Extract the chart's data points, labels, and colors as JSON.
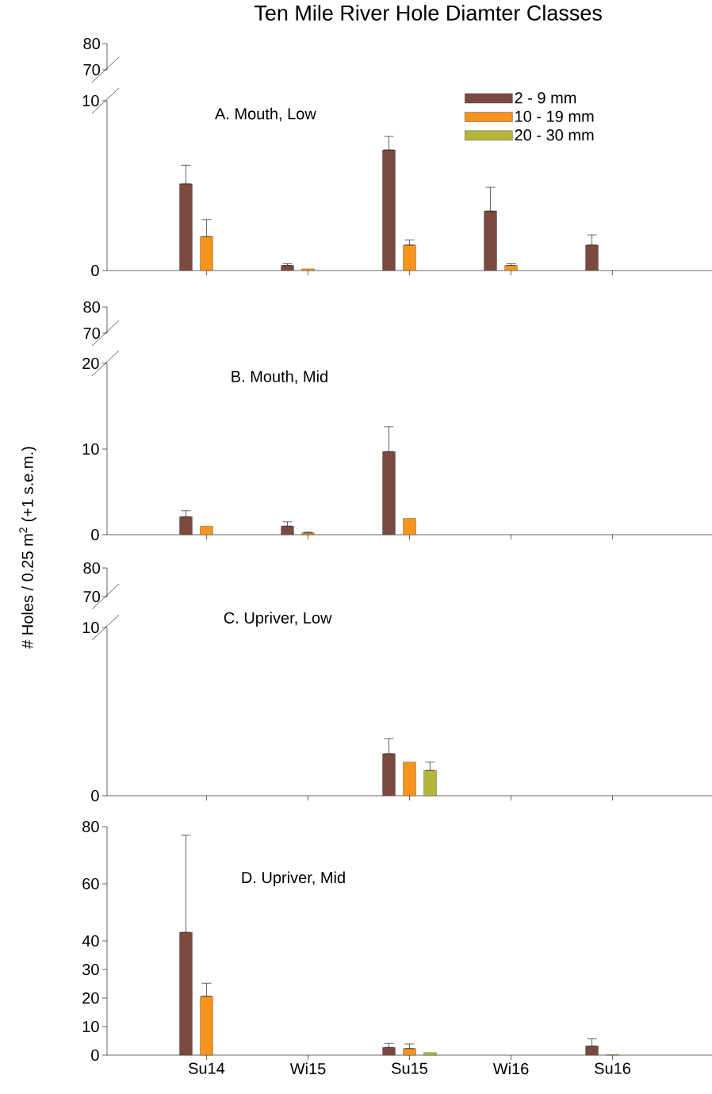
{
  "chart_data": [
    {
      "type": "other",
      "title": "Ten Mile River Hole Diamter Classes",
      "annotations": [
        "80",
        "70"
      ]
    },
    {
      "type": "bar",
      "annotations": [
        "A. Mouth, Low"
      ],
      "categories": [
        null,
        null,
        null,
        null,
        null
      ],
      "ylim": [
        0,
        10
      ],
      "yticks": [
        0,
        10
      ],
      "tick_labels": "y",
      "legend": "top right",
      "series": [
        {
          "name": "2 - 9 mm",
          "color": "#7b4a3f",
          "values": [
            5.1,
            0.3,
            7.1,
            3.5,
            1.5
          ],
          "errors": [
            [
              5.1,
              6.2
            ],
            [
              0.3,
              0.4
            ],
            [
              7.1,
              7.9
            ],
            [
              3.5,
              4.9
            ],
            [
              1.5,
              2.1
            ]
          ]
        },
        {
          "name": "10 - 19 mm",
          "color": "#f7941d",
          "values": [
            2.0,
            0.1,
            1.5,
            0.3,
            null
          ],
          "errors": [
            [
              2.0,
              3.0
            ],
            null,
            [
              1.5,
              1.8
            ],
            [
              0.3,
              0.4
            ],
            null
          ]
        },
        {
          "name": "20 - 30 mm",
          "color": "#b5b53a",
          "values": [
            null,
            null,
            null,
            null,
            null
          ]
        }
      ]
    },
    {
      "type": "other",
      "annotations": [
        "80",
        "70"
      ]
    },
    {
      "type": "bar",
      "annotations": [
        "B. Mouth, Mid"
      ],
      "ylabel": "# Holes / 0.25 m$^{2}$ (+1 s.e.m.)",
      "categories": [
        null,
        null,
        null,
        null,
        null
      ],
      "ylim": [
        0,
        20
      ],
      "yticks": [
        0,
        10,
        20
      ],
      "tick_labels": "y",
      "series": [
        {
          "color": "#7b4a3f",
          "values": [
            2.1,
            1.0,
            9.7,
            null,
            null
          ],
          "errors": [
            [
              2.1,
              2.8
            ],
            [
              1.0,
              1.5
            ],
            [
              9.7,
              12.6
            ],
            null,
            null
          ]
        },
        {
          "color": "#f7941d",
          "values": [
            1.0,
            0.2,
            1.9,
            null,
            null
          ],
          "errors": [
            null,
            [
              0.2,
              0.3
            ],
            null,
            null,
            null
          ]
        },
        {
          "color": "#b5b53a",
          "values": [
            null,
            null,
            null,
            null,
            null
          ]
        }
      ]
    },
    {
      "type": "other",
      "annotations": [
        "80",
        "70"
      ]
    },
    {
      "type": "bar",
      "annotations": [
        "C. Upriver, Low"
      ],
      "categories": [
        null,
        null,
        null,
        null,
        null
      ],
      "ylim": [
        0,
        10
      ],
      "yticks": [
        0,
        10
      ],
      "tick_labels": "y",
      "series": [
        {
          "color": "#7b4a3f",
          "values": [
            null,
            null,
            2.5,
            null,
            null
          ],
          "errors": [
            null,
            null,
            [
              2.5,
              3.4
            ],
            null,
            null
          ]
        },
        {
          "color": "#f7941d",
          "values": [
            null,
            null,
            2.0,
            null,
            null
          ]
        },
        {
          "color": "#b5b53a",
          "values": [
            null,
            null,
            1.5,
            null,
            null
          ],
          "errors": [
            null,
            null,
            [
              1.5,
              2.0
            ],
            null,
            null
          ]
        }
      ]
    },
    {
      "type": "bar",
      "annotations": [
        "D. Upriver, Mid"
      ],
      "categories": [
        "Su14",
        "Wi15",
        "Su15",
        "Wi16",
        "Su16"
      ],
      "ylim": [
        0,
        80
      ],
      "yticks": [
        0,
        10,
        20,
        30,
        40,
        60,
        80
      ],
      "series": [
        {
          "color": "#7b4a3f",
          "values": [
            43,
            null,
            2.7,
            null,
            3.2
          ],
          "errors": [
            [
              43,
              77
            ],
            null,
            [
              2.7,
              4.1
            ],
            null,
            [
              3.2,
              5.7
            ]
          ]
        },
        {
          "color": "#f7941d",
          "values": [
            20.6,
            null,
            2.3,
            null,
            0.2
          ],
          "errors": [
            [
              20.6,
              25.2
            ],
            null,
            [
              2.3,
              3.9
            ],
            null,
            null
          ]
        },
        {
          "color": "#b5b53a",
          "values": [
            null,
            null,
            0.9,
            null,
            null
          ]
        }
      ]
    }
  ]
}
